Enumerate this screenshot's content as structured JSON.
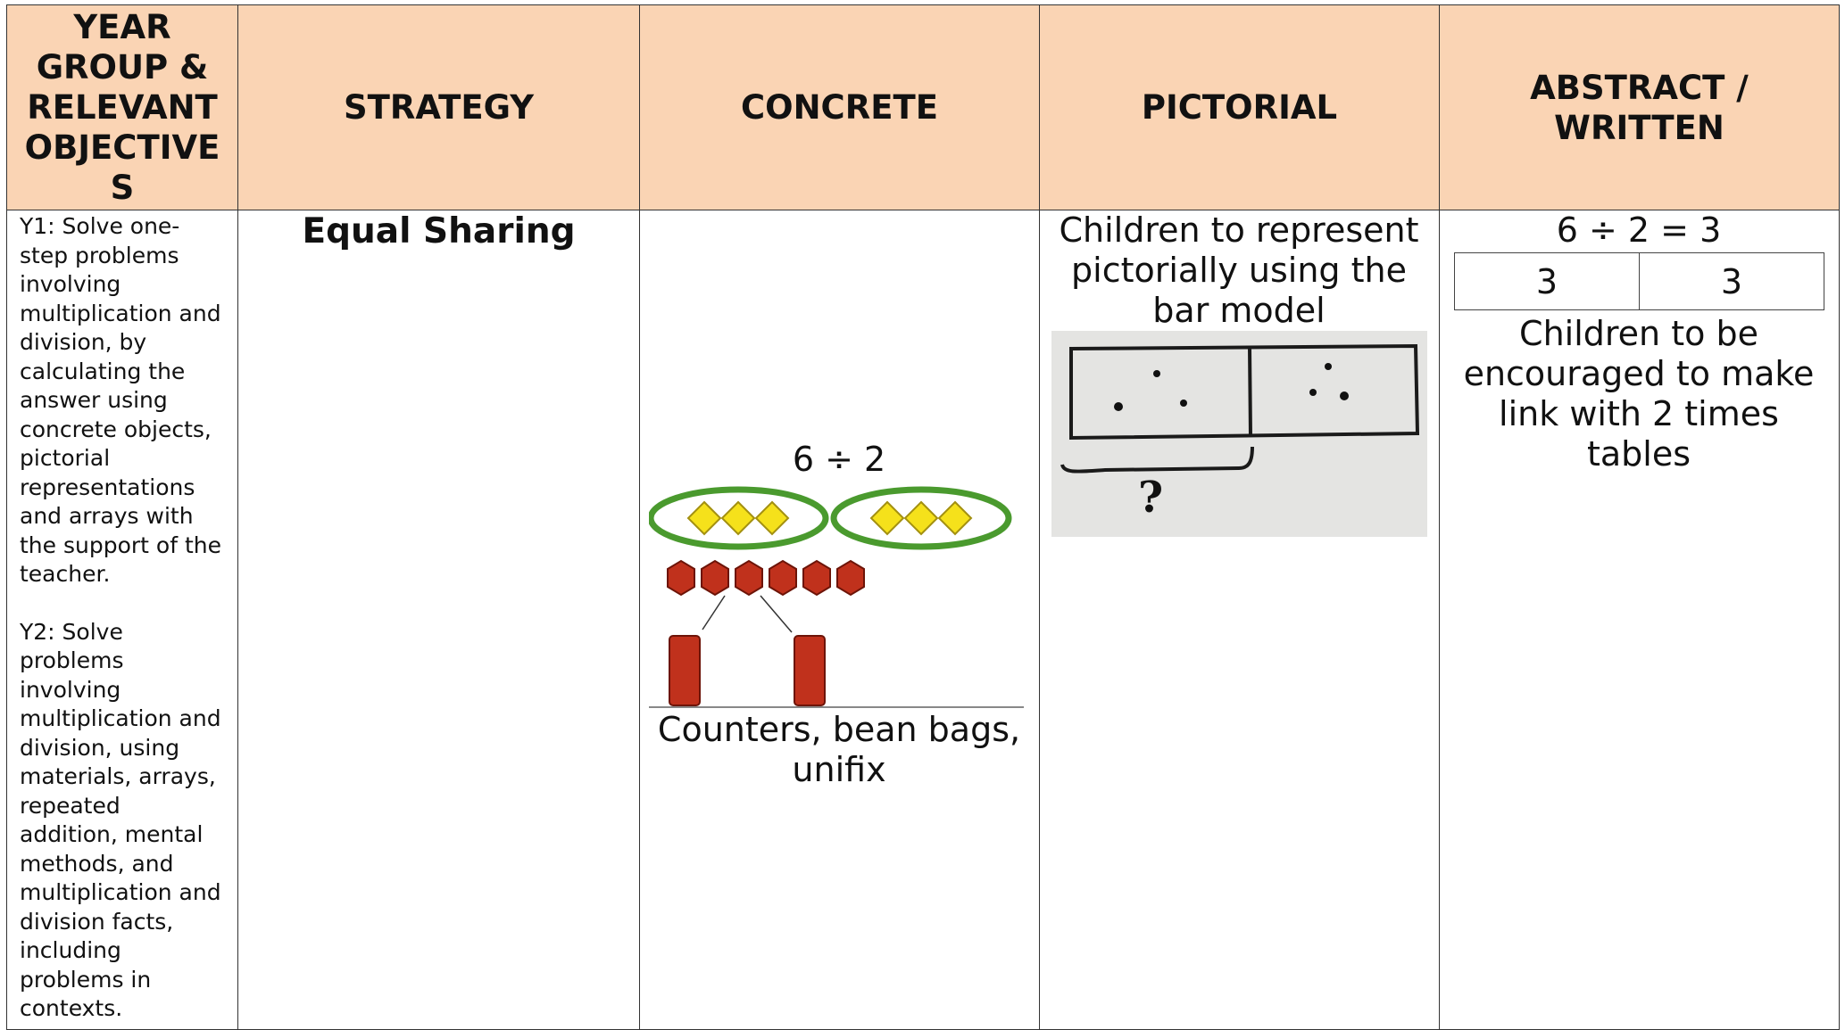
{
  "table": {
    "headers": [
      "YEAR GROUP & RELEVANT OBJECTIVES",
      "STRATEGY",
      "CONCRETE",
      "PICTORIAL",
      "ABSTRACT / WRITTEN"
    ],
    "rows": [
      {
        "objectives": [
          "Y1: Solve one-step problems involving multiplication and division, by calculating the answer using concrete objects, pictorial representations and arrays with the support of the teacher.",
          "Y2: Solve problems involving multiplication and division, using materials, arrays, repeated addition, mental methods, and multiplication and division facts, including problems in contexts."
        ],
        "strategy": "Equal Sharing",
        "concrete": {
          "equation": "6 ÷ 2",
          "caption": "Counters, bean bags, unifix"
        },
        "pictorial": {
          "caption": "Children to represent pictorially using the bar model",
          "bar_question": "?"
        },
        "abstract": {
          "equation": "6 ÷ 2 = 3",
          "bar": [
            "3",
            "3"
          ],
          "note": "Children to be encouraged to make link with 2 times tables"
        }
      }
    ]
  }
}
